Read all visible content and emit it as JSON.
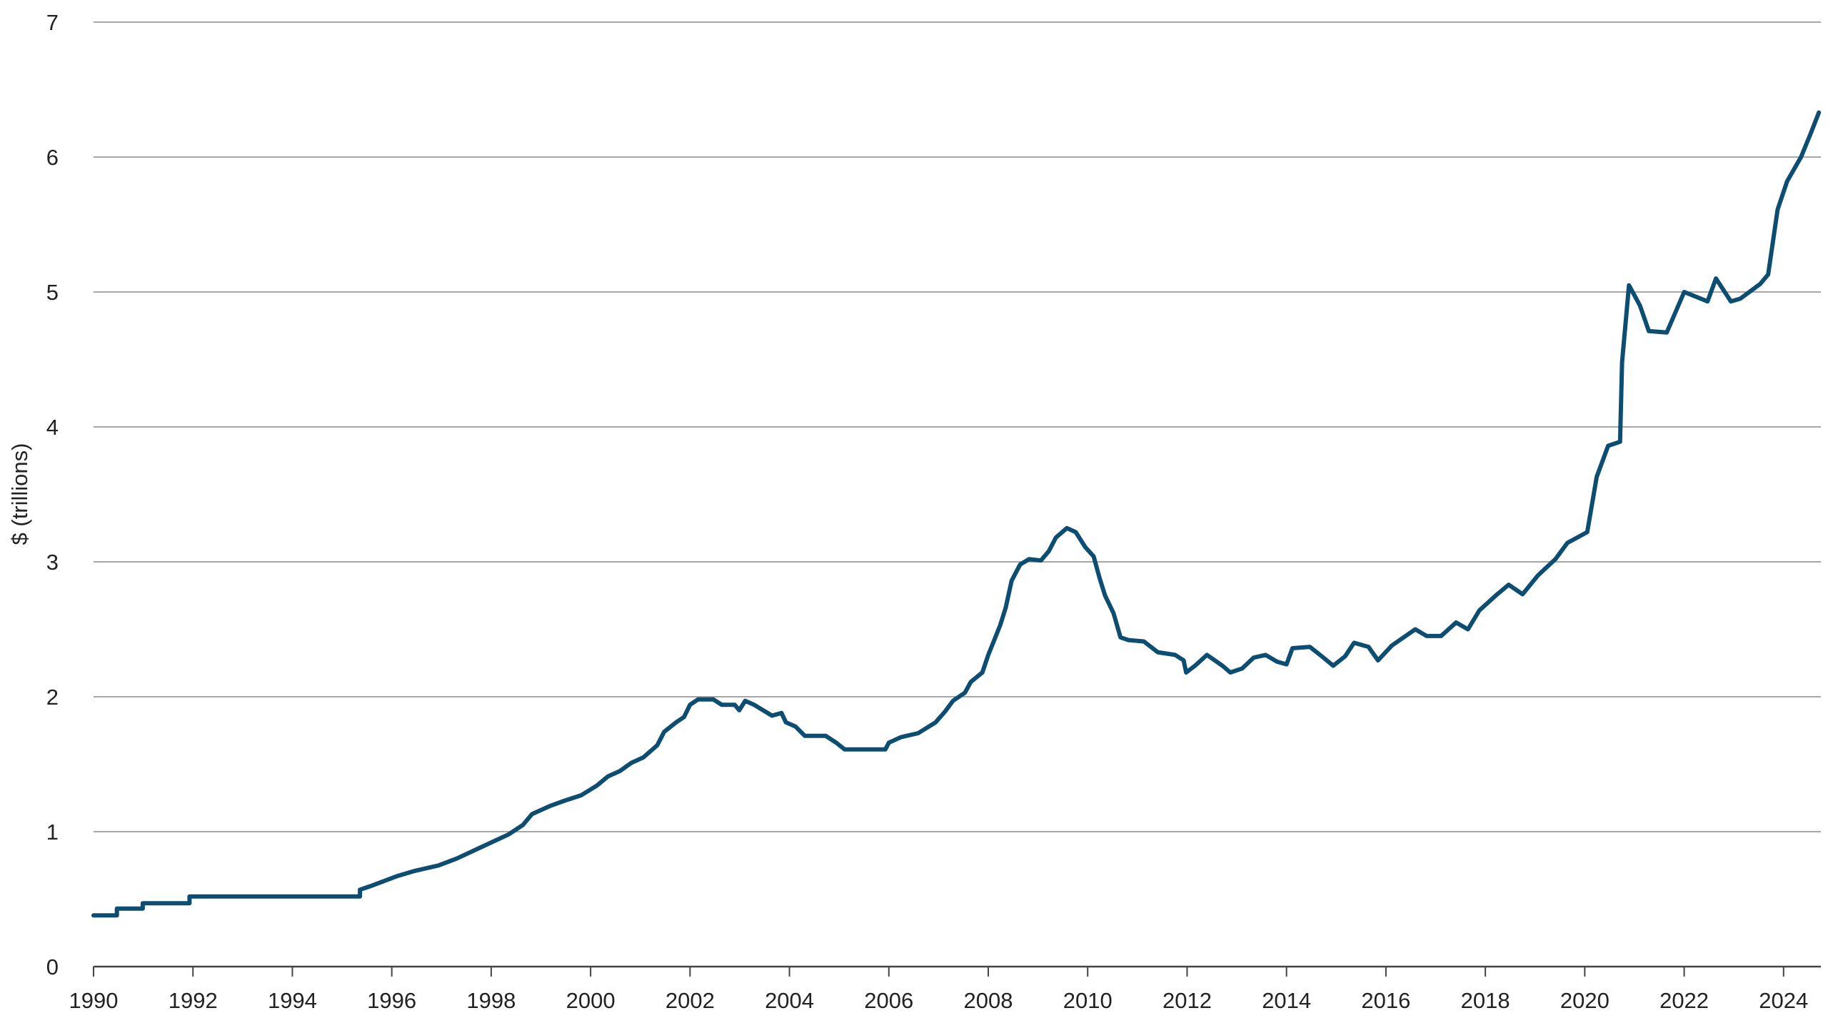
{
  "chart_data": {
    "type": "line",
    "y_label": "$ (trillions)",
    "color": "#0e4d72",
    "grid": true,
    "xlim": [
      1990,
      2024.75
    ],
    "xticks": [
      1990,
      1992,
      1994,
      1996,
      1998,
      2000,
      2002,
      2004,
      2006,
      2008,
      2010,
      2012,
      2014,
      2016,
      2018,
      2020,
      2022,
      2024
    ],
    "ylim": [
      0,
      7
    ],
    "yticks": [
      0,
      1,
      2,
      3,
      4,
      5,
      6,
      7
    ],
    "x": [
      1990,
      1990.47,
      1990.47,
      1990.99,
      1990.99,
      1991.93,
      1991.93,
      1995.36,
      1995.36,
      1995.6,
      1996.1,
      1996.47,
      1996.94,
      1997.3,
      1997.65,
      1998,
      1998.35,
      1998.64,
      1998.82,
      1999.18,
      1999.48,
      1999.81,
      2000.12,
      2000.35,
      2000.59,
      2000.82,
      2001.06,
      2001.34,
      2001.48,
      2001.72,
      2001.88,
      2002,
      2002.16,
      2002.47,
      2002.64,
      2002.9,
      2002.99,
      2003.11,
      2003.29,
      2003.65,
      2003.84,
      2003.93,
      2004.12,
      2004.31,
      2004.73,
      2004.94,
      2005.11,
      2005.93,
      2006,
      2006.24,
      2006.59,
      2006.94,
      2007.13,
      2007.29,
      2007.53,
      2007.65,
      2007.88,
      2008,
      2008.12,
      2008.24,
      2008.35,
      2008.47,
      2008.64,
      2008.82,
      2009.06,
      2009.22,
      2009.36,
      2009.58,
      2009.76,
      2009.95,
      2010.12,
      2010.24,
      2010.35,
      2010.52,
      2010.66,
      2010.82,
      2011.13,
      2011.41,
      2011.76,
      2011.93,
      2011.98,
      2012.16,
      2012.4,
      2012.71,
      2012.87,
      2013.11,
      2013.34,
      2013.58,
      2013.81,
      2014,
      2014.12,
      2014.47,
      2014.71,
      2014.94,
      2015.18,
      2015.36,
      2015.65,
      2015.84,
      2016.12,
      2016.59,
      2016.82,
      2017.11,
      2017.41,
      2017.65,
      2017.88,
      2018.24,
      2018.47,
      2018.75,
      2019.06,
      2019.41,
      2019.65,
      2020.05,
      2020.24,
      2020.47,
      2020.71,
      2020.75,
      2020.89,
      2021.11,
      2021.29,
      2021.65,
      2022,
      2022.47,
      2022.64,
      2022.94,
      2023.13,
      2023.53,
      2023.69,
      2023.88,
      2024.07,
      2024.35,
      2024.54,
      2024.71
    ],
    "values": [
      0.38,
      0.38,
      0.43,
      0.43,
      0.47,
      0.47,
      0.52,
      0.52,
      0.57,
      0.6,
      0.67,
      0.71,
      0.75,
      0.8,
      0.86,
      0.92,
      0.98,
      1.05,
      1.13,
      1.19,
      1.23,
      1.27,
      1.34,
      1.41,
      1.45,
      1.51,
      1.55,
      1.64,
      1.74,
      1.81,
      1.85,
      1.94,
      1.98,
      1.98,
      1.94,
      1.94,
      1.9,
      1.97,
      1.94,
      1.86,
      1.88,
      1.81,
      1.78,
      1.71,
      1.71,
      1.66,
      1.61,
      1.61,
      1.66,
      1.7,
      1.73,
      1.81,
      1.89,
      1.97,
      2.03,
      2.11,
      2.18,
      2.31,
      2.42,
      2.53,
      2.66,
      2.86,
      2.98,
      3.02,
      3.01,
      3.08,
      3.18,
      3.25,
      3.22,
      3.11,
      3.04,
      2.88,
      2.75,
      2.62,
      2.44,
      2.42,
      2.41,
      2.33,
      2.31,
      2.27,
      2.18,
      2.23,
      2.31,
      2.23,
      2.18,
      2.21,
      2.29,
      2.31,
      2.26,
      2.24,
      2.36,
      2.37,
      2.3,
      2.23,
      2.3,
      2.4,
      2.37,
      2.27,
      2.38,
      2.5,
      2.45,
      2.45,
      2.55,
      2.5,
      2.64,
      2.76,
      2.83,
      2.76,
      2.9,
      3.02,
      3.14,
      3.22,
      3.63,
      3.86,
      3.89,
      4.48,
      5.05,
      4.9,
      4.71,
      4.7,
      5.0,
      4.93,
      5.1,
      4.93,
      4.95,
      5.06,
      5.13,
      5.61,
      5.82,
      6.0,
      6.17,
      6.33
    ]
  }
}
